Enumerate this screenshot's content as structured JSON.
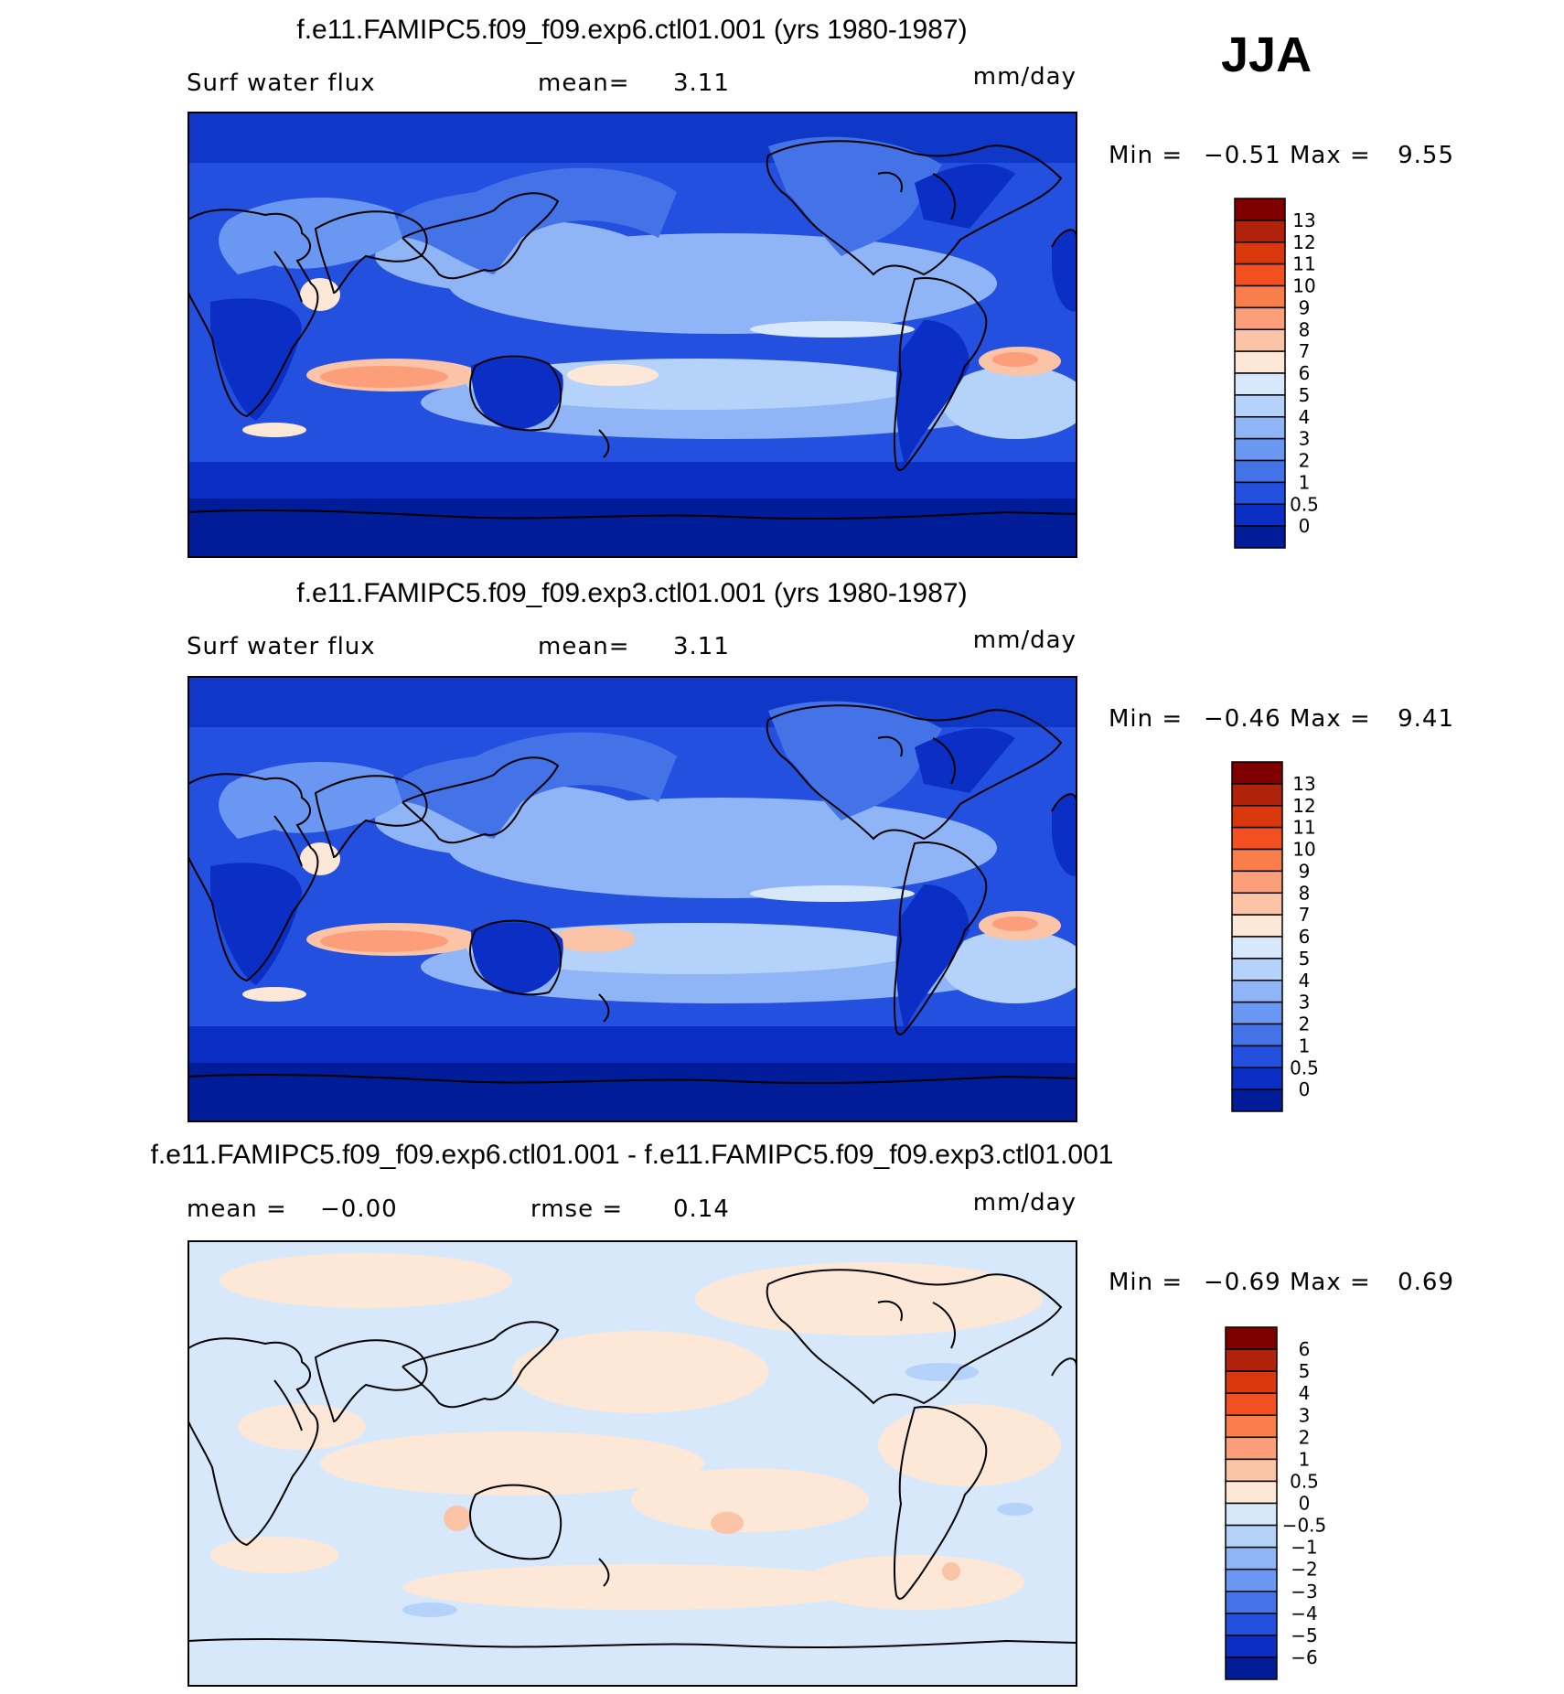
{
  "season": "JJA",
  "units": "mm/day",
  "panels": [
    {
      "title": "f.e11.FAMIPC5.f09_f09.exp6.ctl01.001 (yrs 1980-1987)",
      "left_label": "Surf water flux",
      "mid_label": "mean=",
      "mid_value": "3.11",
      "units": "mm/day",
      "min_text": "Min =",
      "min_value": "−0.51",
      "max_text": "Max =",
      "max_value": "9.55"
    },
    {
      "title": "f.e11.FAMIPC5.f09_f09.exp3.ctl01.001 (yrs 1980-1987)",
      "left_label": "Surf water flux",
      "mid_label": "mean=",
      "mid_value": "3.11",
      "units": "mm/day",
      "min_text": "Min =",
      "min_value": "−0.46",
      "max_text": "Max =",
      "max_value": "9.41"
    },
    {
      "title": "f.e11.FAMIPC5.f09_f09.exp6.ctl01.001 - f.e11.FAMIPC5.f09_f09.exp3.ctl01.001",
      "left_label": "mean =",
      "left_value": "−0.00",
      "mid_label": "rmse =",
      "mid_value": "0.14",
      "units": "mm/day",
      "min_text": "Min =",
      "min_value": "−0.69",
      "max_text": "Max =",
      "max_value": "0.69"
    }
  ],
  "colorbars": {
    "field": {
      "ticks": [
        "13",
        "12",
        "11",
        "10",
        "9",
        "8",
        "7",
        "6",
        "5",
        "4",
        "3",
        "2",
        "1",
        "0.5",
        "0"
      ],
      "colors": [
        "#800000",
        "#b0230a",
        "#d9380d",
        "#f25020",
        "#fa7d4c",
        "#fc9e7a",
        "#fbc4a6",
        "#fde8d8",
        "#d7e8fb",
        "#b5d2fb",
        "#8fb5f7",
        "#6a97f1",
        "#4473e8",
        "#2450df",
        "#0b2fc4",
        "#001c98"
      ]
    },
    "difference": {
      "ticks": [
        "6",
        "5",
        "4",
        "3",
        "2",
        "1",
        "0.5",
        "0",
        "−0.5",
        "−1",
        "−2",
        "−3",
        "−4",
        "−5",
        "−6"
      ],
      "colors": [
        "#800000",
        "#b0230a",
        "#d9380d",
        "#f25020",
        "#fa7d4c",
        "#fc9e7a",
        "#fbc4a6",
        "#fde8d8",
        "#d7e8fb",
        "#b5d2fb",
        "#8fb5f7",
        "#6a97f1",
        "#4473e8",
        "#2450df",
        "#0b2fc4",
        "#001c98"
      ]
    }
  }
}
